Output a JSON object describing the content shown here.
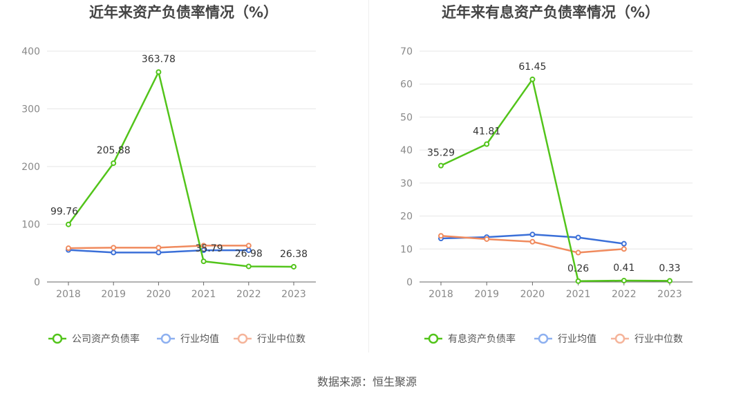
{
  "source_label": "数据来源：恒生聚源",
  "colors": {
    "company": "#52c41a",
    "industry_avg": "#3a6fd8",
    "industry_median": "#f08a5d",
    "legend_avg": "#8db0f0",
    "legend_median": "#f5b49a"
  },
  "chart_data": [
    {
      "type": "line",
      "title": "近年来资产负债率情况（%）",
      "x": [
        "2018",
        "2019",
        "2020",
        "2021",
        "2022",
        "2023"
      ],
      "ylim": [
        0,
        400
      ],
      "yticks": [
        "0",
        "100",
        "200",
        "300",
        "400"
      ],
      "legend_position": "bottom",
      "series": [
        {
          "name": "公司资产负债率",
          "key": "company",
          "values": [
            99.76,
            205.88,
            363.78,
            35.79,
            26.98,
            26.38
          ],
          "labels": [
            "99.76",
            "205.88",
            "363.78",
            "35.79",
            "26.98",
            "26.38"
          ]
        },
        {
          "name": "行业均值",
          "key": "industry_avg",
          "values": [
            55.5,
            51,
            51,
            55,
            55,
            null
          ]
        },
        {
          "name": "行业中位数",
          "key": "industry_median",
          "values": [
            58.5,
            59.5,
            59.5,
            63,
            63,
            null
          ]
        }
      ]
    },
    {
      "type": "line",
      "title": "近年来有息资产负债率情况（%）",
      "x": [
        "2018",
        "2019",
        "2020",
        "2021",
        "2022",
        "2023"
      ],
      "ylim": [
        0,
        70
      ],
      "yticks": [
        "0",
        "10",
        "20",
        "30",
        "40",
        "50",
        "60",
        "70"
      ],
      "legend_position": "bottom",
      "series": [
        {
          "name": "有息资产负债率",
          "key": "company",
          "values": [
            35.29,
            41.81,
            61.45,
            0.26,
            0.41,
            0.33
          ],
          "labels": [
            "35.29",
            "41.81",
            "61.45",
            "0.26",
            "0.41",
            "0.33"
          ]
        },
        {
          "name": "行业均值",
          "key": "industry_avg",
          "values": [
            13.2,
            13.6,
            14.4,
            13.5,
            11.6,
            null
          ]
        },
        {
          "name": "行业中位数",
          "key": "industry_median",
          "values": [
            14,
            13,
            12.2,
            8.9,
            10,
            null
          ]
        }
      ]
    }
  ]
}
